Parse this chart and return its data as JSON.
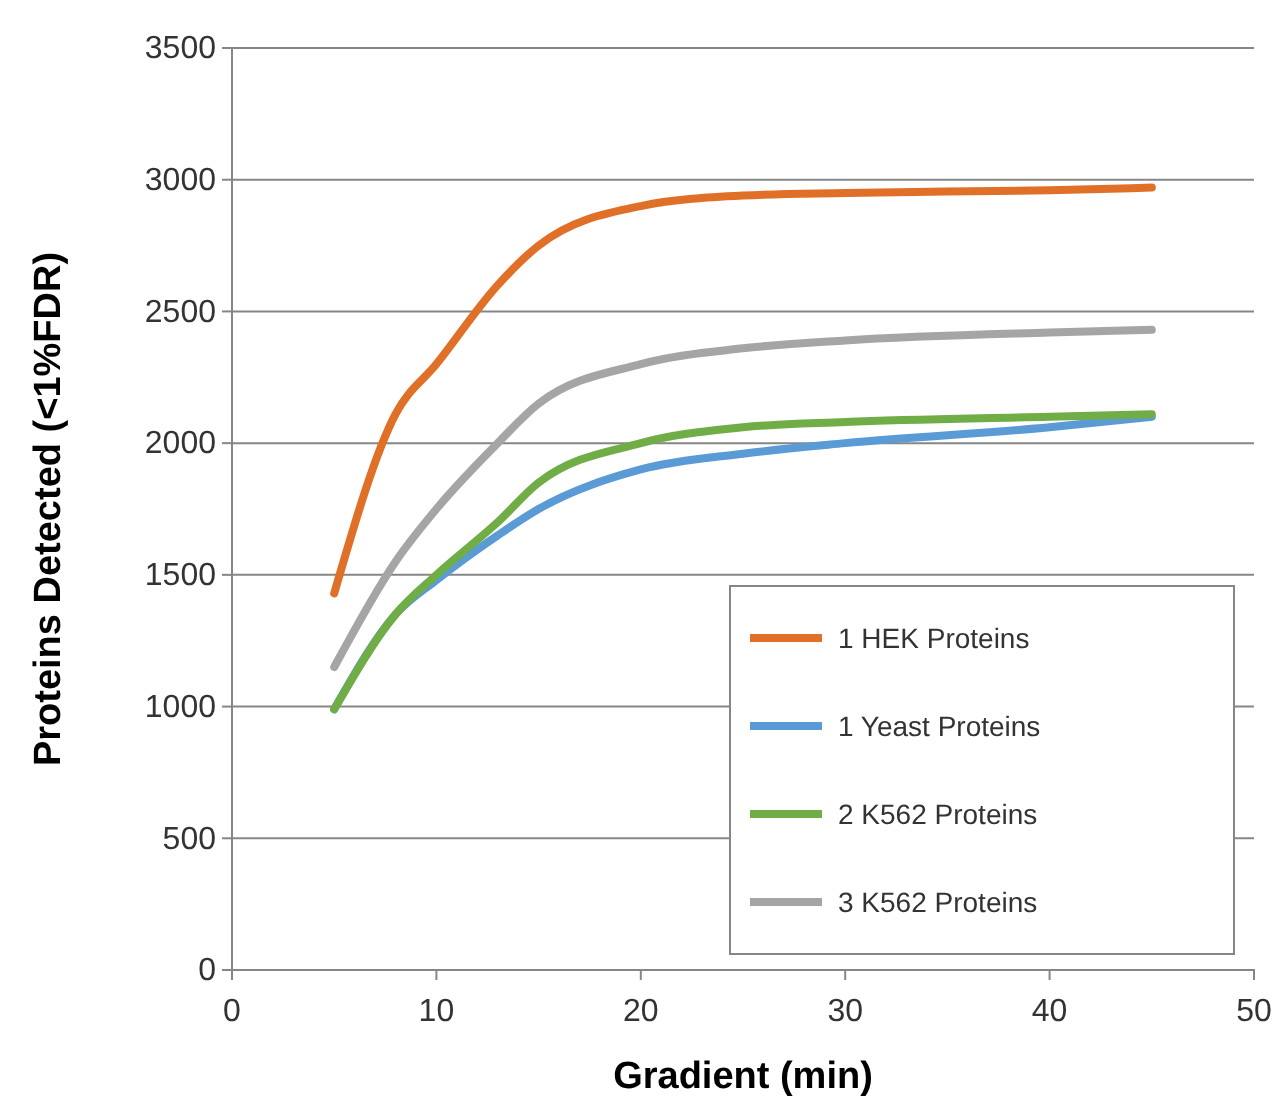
{
  "chart_data": {
    "type": "line",
    "xlabel": "Gradient (min)",
    "ylabel": "Proteins Detected (<1%FDR)",
    "x": [
      5,
      8,
      10,
      13,
      15,
      20,
      25,
      30,
      40,
      45
    ],
    "series": [
      {
        "name": "1 HEK Proteins",
        "color": "#e07028",
        "values": [
          1430,
          2110,
          2300,
          2600,
          2750,
          2900,
          2940,
          2950,
          2960,
          2970
        ]
      },
      {
        "name": "1 Yeast Proteins",
        "color": "#5b9bd5",
        "values": [
          990,
          1350,
          1480,
          1650,
          1750,
          1900,
          1960,
          2000,
          2060,
          2100
        ]
      },
      {
        "name": "2 K562 Proteins",
        "color": "#70ad47",
        "values": [
          990,
          1350,
          1500,
          1700,
          1850,
          2000,
          2060,
          2080,
          2100,
          2110
        ]
      },
      {
        "name": "3 K562 Proteins",
        "color": "#a5a5a5",
        "values": [
          1150,
          1550,
          1750,
          2000,
          2150,
          2300,
          2360,
          2390,
          2420,
          2430
        ]
      }
    ],
    "xlim": [
      0,
      50
    ],
    "xticks": [
      0,
      10,
      20,
      30,
      40,
      50
    ],
    "ylim": [
      0,
      3500
    ],
    "yticks": [
      0,
      500,
      1000,
      1500,
      2000,
      2500,
      3000,
      3500
    ],
    "grid": "y",
    "legend": "bottom right",
    "marker": "none",
    "line_style": "solid"
  }
}
